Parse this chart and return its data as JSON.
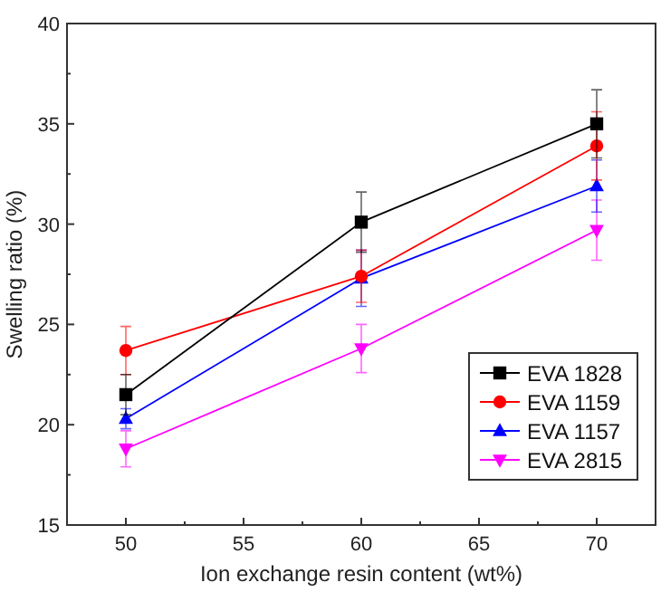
{
  "chart_data": {
    "type": "line",
    "xlabel": "Ion exchange resin content (wt%)",
    "ylabel": "Swelling ratio (%)",
    "x": [
      50,
      60,
      70
    ],
    "xlim": [
      47.5,
      72.5
    ],
    "xticks": [
      50,
      55,
      60,
      65,
      70
    ],
    "ylim": [
      15,
      40
    ],
    "yticks": [
      15,
      20,
      25,
      30,
      35,
      40
    ],
    "grid": false,
    "legend": "bottom right",
    "series": [
      {
        "name": "EVA 1828",
        "color": "#000000",
        "marker": "square",
        "values": [
          21.5,
          30.1,
          35.0
        ],
        "errors": [
          1.0,
          1.5,
          1.7
        ]
      },
      {
        "name": "EVA 1159",
        "color": "#ff0000",
        "marker": "circle",
        "values": [
          23.7,
          27.4,
          33.9
        ],
        "errors": [
          1.2,
          1.3,
          1.7
        ]
      },
      {
        "name": "EVA 1157",
        "color": "#0000ff",
        "marker": "triangle",
        "values": [
          20.3,
          27.3,
          31.9
        ],
        "errors": [
          0.5,
          1.4,
          1.3
        ]
      },
      {
        "name": "EVA 2815",
        "color": "#ff00ff",
        "marker": "triangle-down",
        "values": [
          18.8,
          23.8,
          29.7
        ],
        "errors": [
          0.9,
          1.2,
          1.5
        ]
      }
    ]
  }
}
